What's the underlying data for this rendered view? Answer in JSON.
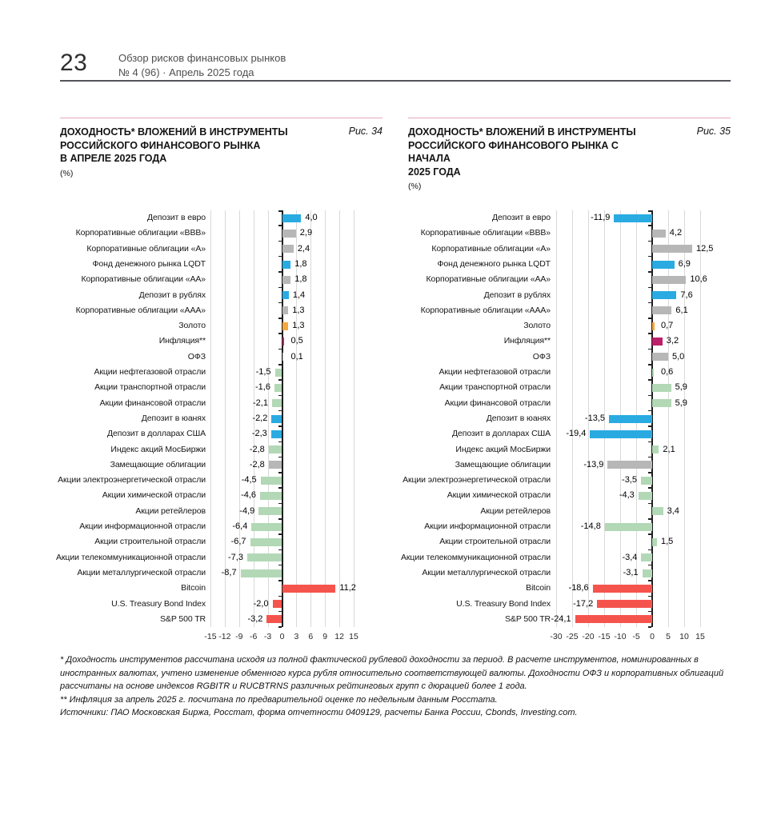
{
  "page": {
    "number": "23",
    "header_line1": "Обзор рисков финансовых рынков",
    "header_line2": "№ 4 (96) · Апрель 2025 года"
  },
  "palette": {
    "deposit": "#29abe2",
    "bond": "#b7b7b7",
    "equity": "#b2d8b6",
    "gold": "#f5a83e",
    "inflation": "#bb2068",
    "foreign": "#f5544d",
    "grid": "#d9d9d9",
    "zero_axis": "#1f1f1f",
    "accent_line": "#e8aab9"
  },
  "chart_data": [
    {
      "type": "bar",
      "orientation": "horizontal",
      "figure_label": "Рис. 34",
      "title": "ДОХОДНОСТЬ* ВЛОЖЕНИЙ В ИНСТРУМЕНТЫ РОССИЙСКОГО ФИНАНСОВОГО РЫНКА В АПРЕЛЕ 2025 ГОДА",
      "title_lines": [
        "ДОХОДНОСТЬ* ВЛОЖЕНИЙ В ИНСТРУМЕНТЫ",
        "РОССИЙСКОГО ФИНАНСОВОГО РЫНКА",
        "В АПРЕЛЕ 2025 ГОДА"
      ],
      "unit_label": "(%)",
      "xlim": [
        -15,
        15
      ],
      "xticks": [
        -15,
        -12,
        -9,
        -6,
        -3,
        0,
        3,
        6,
        9,
        12,
        15
      ],
      "grid": true,
      "categories": [
        "Депозит в евро",
        "Корпоративные облигации «BBB»",
        "Корпоративные облигации «А»",
        "Фонд денежного рынка LQDT",
        "Корпоративные облигации «АА»",
        "Депозит в рублях",
        "Корпоративные облигации «ААА»",
        "Золото",
        "Инфляция**",
        "ОФЗ",
        "Акции нефтегазовой отрасли",
        "Акции транспортной отрасли",
        "Акции финансовой отрасли",
        "Депозит в юанях",
        "Депозит в долларах США",
        "Индекс акций МосБиржи",
        "Замещающие облигации",
        "Акции электроэнергетической отрасли",
        "Акции химической отрасли",
        "Акции ретейлеров",
        "Акции информационной отрасли",
        "Акции строительной отрасли",
        "Акции телекоммуникационной отрасли",
        "Акции металлургической отрасли",
        "Bitcoin",
        "U.S. Treasury Bond Index",
        "S&P 500 TR"
      ],
      "values": [
        4.0,
        2.9,
        2.4,
        1.8,
        1.8,
        1.4,
        1.3,
        1.3,
        0.5,
        0.1,
        -1.5,
        -1.6,
        -2.1,
        -2.2,
        -2.3,
        -2.8,
        -2.8,
        -4.5,
        -4.6,
        -4.9,
        -6.4,
        -6.7,
        -7.3,
        -8.7,
        11.2,
        -2.0,
        -3.2
      ],
      "value_labels": [
        "4,0",
        "2,9",
        "2,4",
        "1,8",
        "1,8",
        "1,4",
        "1,3",
        "1,3",
        "0,5",
        "0,1",
        "-1,5",
        "-1,6",
        "-2,1",
        "-2,2",
        "-2,3",
        "-2,8",
        "-2,8",
        "-4,5",
        "-4,6",
        "-4,9",
        "-6,4",
        "-6,7",
        "-7,3",
        "-8,7",
        "11,2",
        "-2,0",
        "-3,2"
      ],
      "color_keys": [
        "deposit",
        "bond",
        "bond",
        "deposit",
        "bond",
        "deposit",
        "bond",
        "gold",
        "inflation",
        "bond",
        "equity",
        "equity",
        "equity",
        "deposit",
        "deposit",
        "equity",
        "bond",
        "equity",
        "equity",
        "equity",
        "equity",
        "equity",
        "equity",
        "equity",
        "foreign",
        "foreign",
        "foreign"
      ]
    },
    {
      "type": "bar",
      "orientation": "horizontal",
      "figure_label": "Рис. 35",
      "title": "ДОХОДНОСТЬ* ВЛОЖЕНИЙ В ИНСТРУМЕНТЫ РОССИЙСКОГО ФИНАНСОВОГО РЫНКА С НАЧАЛА 2025 ГОДА",
      "title_lines": [
        "ДОХОДНОСТЬ* ВЛОЖЕНИЙ В ИНСТРУМЕНТЫ",
        "РОССИЙСКОГО ФИНАНСОВОГО РЫНКА С НАЧАЛА",
        "2025 ГОДА"
      ],
      "unit_label": "(%)",
      "xlim": [
        -30,
        15
      ],
      "xticks": [
        -30,
        -25,
        -20,
        -15,
        -10,
        -5,
        0,
        5,
        10,
        15
      ],
      "grid": true,
      "categories": [
        "Депозит в евро",
        "Корпоративные облигации «BBB»",
        "Корпоративные облигации «А»",
        "Фонд денежного рынка LQDT",
        "Корпоративные облигации «АА»",
        "Депозит в рублях",
        "Корпоративные облигации «ААА»",
        "Золото",
        "Инфляция**",
        "ОФЗ",
        "Акции нефтегазовой отрасли",
        "Акции транспортной отрасли",
        "Акции финансовой отрасли",
        "Депозит в юанях",
        "Депозит в долларах США",
        "Индекс акций МосБиржи",
        "Замещающие облигации",
        "Акции электроэнергетической отрасли",
        "Акции химической отрасли",
        "Акции ретейлеров",
        "Акции информационной отрасли",
        "Акции строительной отрасли",
        "Акции телекоммуникационной отрасли",
        "Акции металлургической отрасли",
        "Bitcoin",
        "U.S. Treasury Bond Index",
        "S&P 500 TR"
      ],
      "values": [
        -11.9,
        4.2,
        12.5,
        6.9,
        10.6,
        7.6,
        6.1,
        0.7,
        3.2,
        5.0,
        0.6,
        5.9,
        5.9,
        -13.5,
        -19.4,
        2.1,
        -13.9,
        -3.5,
        -4.3,
        3.4,
        -14.8,
        1.5,
        -3.4,
        -3.1,
        -18.6,
        -17.2,
        -24.1
      ],
      "value_labels": [
        "-11,9",
        "4,2",
        "12,5",
        "6,9",
        "10,6",
        "7,6",
        "6,1",
        "0,7",
        "3,2",
        "5,0",
        "0,6",
        "5,9",
        "5,9",
        "-13,5",
        "-19,4",
        "2,1",
        "-13,9",
        "-3,5",
        "-4,3",
        "3,4",
        "-14,8",
        "1,5",
        "-3,4",
        "-3,1",
        "-18,6",
        "-17,2",
        "-24,1"
      ],
      "color_keys": [
        "deposit",
        "bond",
        "bond",
        "deposit",
        "bond",
        "deposit",
        "bond",
        "gold",
        "inflation",
        "bond",
        "equity",
        "equity",
        "equity",
        "deposit",
        "deposit",
        "equity",
        "bond",
        "equity",
        "equity",
        "equity",
        "equity",
        "equity",
        "equity",
        "equity",
        "foreign",
        "foreign",
        "foreign"
      ]
    }
  ],
  "footnotes": {
    "note1": "* Доходность инструментов рассчитана исходя из полной фактической рублевой доходности за период. В расчете инструментов, номинированных в иностранных валютах, учтено изменение обменного курса рубля относительно соответствующей валюты. Доходности ОФЗ и корпоративных облигаций рассчитаны на основе индексов RGBITR и RUCBTRNS различных рейтинговых групп с дюрацией более 1 года.",
    "note2": "** Инфляция за апрель 2025 г. посчитана по предварительной оценке по недельным данным Росстата.",
    "sources": "Источники: ПАО Московская Биржа, Росстат, форма отчетности 0409129, расчеты Банка России, Cbonds, Investing.com."
  }
}
